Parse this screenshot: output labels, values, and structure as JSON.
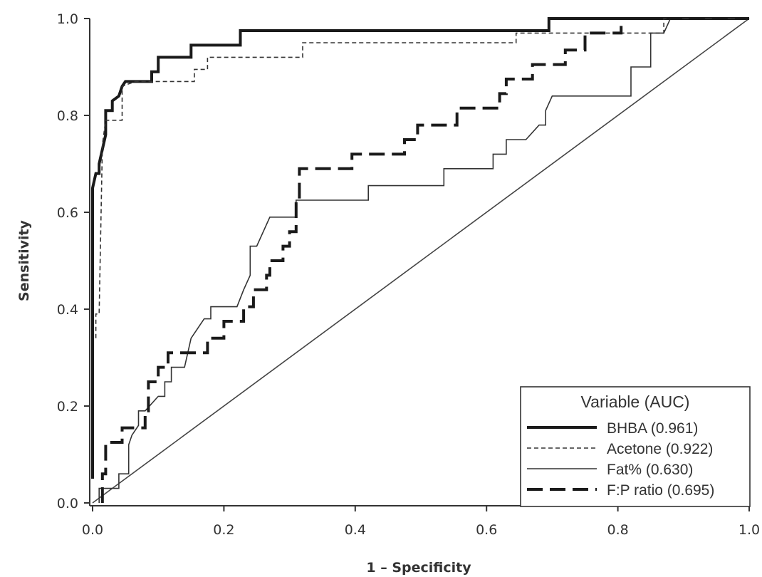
{
  "chart_data": {
    "type": "line",
    "title": "",
    "xlabel": "1 – Specificity",
    "ylabel": "Sensitivity",
    "xlim": [
      0,
      1
    ],
    "ylim": [
      0,
      1
    ],
    "x_ticks": [
      "0.0",
      "0.2",
      "0.4",
      "0.6",
      "0.8",
      "1.0"
    ],
    "y_ticks": [
      "0.0",
      "0.2",
      "0.4",
      "0.6",
      "0.8",
      "1.0"
    ],
    "grid": false,
    "legend": {
      "title": "Variable (AUC)",
      "placement": "bottom-right"
    },
    "series": [
      {
        "name": "BHBA (0.961)",
        "style": "thick-solid",
        "points": [
          [
            0,
            0.05
          ],
          [
            0,
            0.65
          ],
          [
            0.005,
            0.68
          ],
          [
            0.01,
            0.68
          ],
          [
            0.01,
            0.7
          ],
          [
            0.015,
            0.73
          ],
          [
            0.02,
            0.76
          ],
          [
            0.02,
            0.81
          ],
          [
            0.03,
            0.81
          ],
          [
            0.03,
            0.83
          ],
          [
            0.04,
            0.84
          ],
          [
            0.045,
            0.86
          ],
          [
            0.05,
            0.87
          ],
          [
            0.09,
            0.87
          ],
          [
            0.09,
            0.89
          ],
          [
            0.1,
            0.89
          ],
          [
            0.1,
            0.92
          ],
          [
            0.15,
            0.92
          ],
          [
            0.15,
            0.945
          ],
          [
            0.225,
            0.945
          ],
          [
            0.225,
            0.975
          ],
          [
            0.695,
            0.975
          ],
          [
            0.695,
            1.0
          ],
          [
            1.0,
            1.0
          ]
        ]
      },
      {
        "name": "Acetone (0.922)",
        "style": "thin-dashed",
        "points": [
          [
            0.005,
            0.34
          ],
          [
            0.005,
            0.39
          ],
          [
            0.01,
            0.39
          ],
          [
            0.015,
            0.74
          ],
          [
            0.02,
            0.79
          ],
          [
            0.045,
            0.79
          ],
          [
            0.045,
            0.86
          ],
          [
            0.065,
            0.87
          ],
          [
            0.155,
            0.87
          ],
          [
            0.155,
            0.895
          ],
          [
            0.175,
            0.895
          ],
          [
            0.175,
            0.92
          ],
          [
            0.32,
            0.92
          ],
          [
            0.32,
            0.95
          ],
          [
            0.645,
            0.95
          ],
          [
            0.645,
            0.97
          ],
          [
            0.87,
            0.97
          ],
          [
            0.87,
            1.0
          ],
          [
            1.0,
            1.0
          ]
        ]
      },
      {
        "name": "Fat% (0.630)",
        "style": "thin-solid",
        "points": [
          [
            0.01,
            0.0
          ],
          [
            0.01,
            0.03
          ],
          [
            0.04,
            0.03
          ],
          [
            0.04,
            0.06
          ],
          [
            0.055,
            0.06
          ],
          [
            0.055,
            0.12
          ],
          [
            0.06,
            0.14
          ],
          [
            0.07,
            0.16
          ],
          [
            0.07,
            0.19
          ],
          [
            0.08,
            0.19
          ],
          [
            0.1,
            0.22
          ],
          [
            0.11,
            0.22
          ],
          [
            0.11,
            0.25
          ],
          [
            0.12,
            0.25
          ],
          [
            0.12,
            0.28
          ],
          [
            0.13,
            0.28
          ],
          [
            0.14,
            0.28
          ],
          [
            0.15,
            0.34
          ],
          [
            0.16,
            0.36
          ],
          [
            0.17,
            0.38
          ],
          [
            0.18,
            0.38
          ],
          [
            0.18,
            0.405
          ],
          [
            0.22,
            0.405
          ],
          [
            0.23,
            0.44
          ],
          [
            0.24,
            0.47
          ],
          [
            0.24,
            0.53
          ],
          [
            0.25,
            0.53
          ],
          [
            0.26,
            0.56
          ],
          [
            0.27,
            0.59
          ],
          [
            0.31,
            0.59
          ],
          [
            0.31,
            0.625
          ],
          [
            0.42,
            0.625
          ],
          [
            0.42,
            0.655
          ],
          [
            0.535,
            0.655
          ],
          [
            0.535,
            0.69
          ],
          [
            0.61,
            0.69
          ],
          [
            0.61,
            0.72
          ],
          [
            0.63,
            0.72
          ],
          [
            0.63,
            0.75
          ],
          [
            0.66,
            0.75
          ],
          [
            0.68,
            0.78
          ],
          [
            0.69,
            0.78
          ],
          [
            0.69,
            0.81
          ],
          [
            0.7,
            0.84
          ],
          [
            0.82,
            0.84
          ],
          [
            0.82,
            0.9
          ],
          [
            0.85,
            0.9
          ],
          [
            0.85,
            0.97
          ],
          [
            0.87,
            0.97
          ],
          [
            0.88,
            1.0
          ],
          [
            1.0,
            1.0
          ]
        ]
      },
      {
        "name": "F:P ratio (0.695)",
        "style": "thick-dashed",
        "points": [
          [
            0.015,
            0.0
          ],
          [
            0.015,
            0.06
          ],
          [
            0.02,
            0.06
          ],
          [
            0.02,
            0.125
          ],
          [
            0.045,
            0.125
          ],
          [
            0.045,
            0.155
          ],
          [
            0.08,
            0.155
          ],
          [
            0.08,
            0.19
          ],
          [
            0.085,
            0.19
          ],
          [
            0.085,
            0.25
          ],
          [
            0.1,
            0.25
          ],
          [
            0.1,
            0.28
          ],
          [
            0.115,
            0.28
          ],
          [
            0.115,
            0.31
          ],
          [
            0.175,
            0.31
          ],
          [
            0.175,
            0.34
          ],
          [
            0.2,
            0.34
          ],
          [
            0.2,
            0.375
          ],
          [
            0.23,
            0.375
          ],
          [
            0.23,
            0.405
          ],
          [
            0.245,
            0.405
          ],
          [
            0.245,
            0.44
          ],
          [
            0.265,
            0.44
          ],
          [
            0.265,
            0.47
          ],
          [
            0.27,
            0.47
          ],
          [
            0.27,
            0.5
          ],
          [
            0.29,
            0.5
          ],
          [
            0.29,
            0.53
          ],
          [
            0.3,
            0.53
          ],
          [
            0.3,
            0.56
          ],
          [
            0.31,
            0.56
          ],
          [
            0.31,
            0.625
          ],
          [
            0.315,
            0.625
          ],
          [
            0.315,
            0.69
          ],
          [
            0.395,
            0.69
          ],
          [
            0.395,
            0.72
          ],
          [
            0.475,
            0.72
          ],
          [
            0.475,
            0.75
          ],
          [
            0.495,
            0.75
          ],
          [
            0.495,
            0.78
          ],
          [
            0.555,
            0.78
          ],
          [
            0.555,
            0.815
          ],
          [
            0.62,
            0.815
          ],
          [
            0.62,
            0.845
          ],
          [
            0.63,
            0.845
          ],
          [
            0.63,
            0.875
          ],
          [
            0.67,
            0.875
          ],
          [
            0.67,
            0.905
          ],
          [
            0.72,
            0.905
          ],
          [
            0.72,
            0.935
          ],
          [
            0.75,
            0.935
          ],
          [
            0.75,
            0.97
          ],
          [
            0.805,
            0.97
          ],
          [
            0.805,
            1.0
          ],
          [
            1.0,
            1.0
          ]
        ]
      }
    ]
  }
}
